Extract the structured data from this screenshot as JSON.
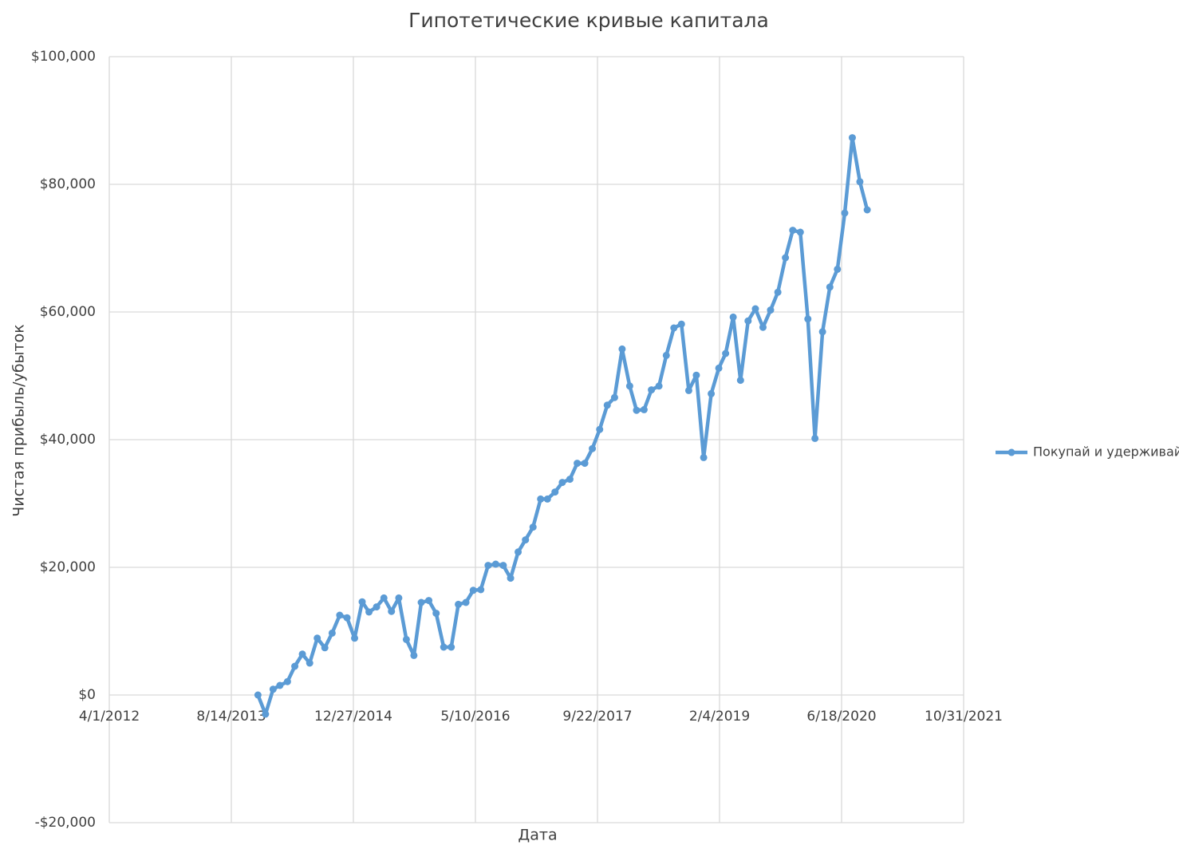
{
  "chart_data": {
    "type": "line",
    "title": "Гипотетические кривые капитала",
    "x_label": "Дата",
    "y_label": "Чистая прибыль/убыток",
    "x": [
      "12/1/2013",
      "1/1/2014",
      "2/1/2014",
      "3/1/2014",
      "4/1/2014",
      "5/1/2014",
      "6/1/2014",
      "7/1/2014",
      "8/1/2014",
      "9/1/2014",
      "10/1/2014",
      "11/1/2014",
      "12/1/2014",
      "1/1/2015",
      "2/1/2015",
      "3/1/2015",
      "4/1/2015",
      "5/1/2015",
      "6/1/2015",
      "7/1/2015",
      "8/1/2015",
      "9/1/2015",
      "10/1/2015",
      "11/1/2015",
      "12/1/2015",
      "1/1/2016",
      "2/1/2016",
      "3/1/2016",
      "4/1/2016",
      "5/1/2016",
      "6/1/2016",
      "7/1/2016",
      "8/1/2016",
      "9/1/2016",
      "10/1/2016",
      "11/1/2016",
      "12/1/2016",
      "1/1/2017",
      "2/1/2017",
      "3/1/2017",
      "4/1/2017",
      "5/1/2017",
      "6/1/2017",
      "7/1/2017",
      "8/1/2017",
      "9/1/2017",
      "10/1/2017",
      "11/1/2017",
      "12/1/2017",
      "1/1/2018",
      "2/1/2018",
      "3/1/2018",
      "4/1/2018",
      "5/1/2018",
      "6/1/2018",
      "7/1/2018",
      "8/1/2018",
      "9/1/2018",
      "10/1/2018",
      "11/1/2018",
      "12/1/2018",
      "1/1/2019",
      "2/1/2019",
      "3/1/2019",
      "4/1/2019",
      "5/1/2019",
      "6/1/2019",
      "7/1/2019",
      "8/1/2019",
      "9/1/2019",
      "10/1/2019",
      "11/1/2019",
      "12/1/2019",
      "1/1/2020",
      "2/1/2020",
      "3/1/2020",
      "4/1/2020",
      "5/1/2020",
      "6/1/2020",
      "7/1/2020",
      "8/1/2020",
      "9/1/2020",
      "10/1/2020"
    ],
    "series": [
      {
        "name": "Покупай и удерживай",
        "color": "#5b9bd5",
        "values": [
          0,
          -3000,
          900,
          1500,
          2100,
          4500,
          6400,
          5000,
          8900,
          7400,
          9700,
          12500,
          12100,
          8900,
          14600,
          13000,
          13800,
          15200,
          13100,
          15200,
          8700,
          6200,
          14500,
          14800,
          12800,
          7500,
          7500,
          14200,
          14500,
          16400,
          16500,
          20300,
          20500,
          20300,
          18300,
          22400,
          24300,
          26300,
          30700,
          30700,
          31800,
          33300,
          33800,
          36300,
          36300,
          38600,
          41600,
          45400,
          46600,
          54200,
          48400,
          44600,
          44700,
          47800,
          48400,
          53200,
          57500,
          58100,
          47700,
          50100,
          37200,
          47200,
          51200,
          53500,
          59200,
          49300,
          58600,
          60500,
          57600,
          60300,
          63100,
          68500,
          72800,
          72500,
          58900,
          40200,
          56900,
          63900,
          66700,
          75500,
          87300,
          80400,
          76000
        ]
      }
    ],
    "xlim": [
      "4/1/2012",
      "10/31/2021"
    ],
    "xticks": [
      "4/1/2012",
      "8/14/2013",
      "12/27/2014",
      "5/10/2016",
      "9/22/2017",
      "2/4/2019",
      "6/18/2020",
      "10/31/2021"
    ],
    "ylim": [
      -20000,
      100000
    ],
    "yticks": [
      {
        "value": -20000,
        "label": "-$20,000"
      },
      {
        "value": 0,
        "label": "$0"
      },
      {
        "value": 20000,
        "label": "$20,000"
      },
      {
        "value": 40000,
        "label": "$40,000"
      },
      {
        "value": 60000,
        "label": "$60,000"
      },
      {
        "value": 80000,
        "label": "$80,000"
      },
      {
        "value": 100000,
        "label": "$100,000"
      }
    ],
    "grid": true,
    "legend": "right"
  }
}
